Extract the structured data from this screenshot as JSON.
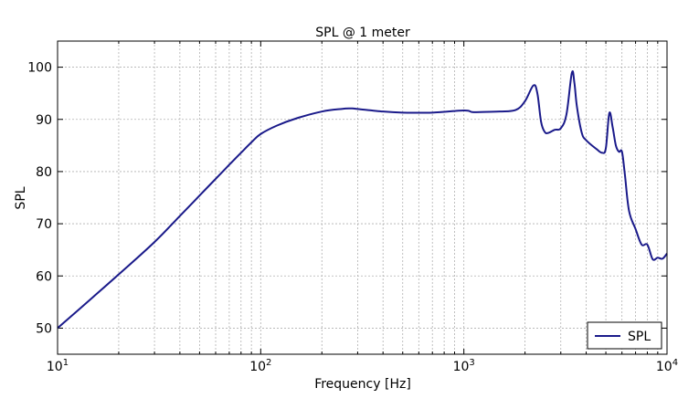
{
  "chart_data": {
    "type": "line",
    "title": "SPL @ 1 meter",
    "xlabel": "Frequency [Hz]",
    "ylabel": "SPL",
    "xscale": "log",
    "xlim": [
      10,
      10000
    ],
    "ylim": [
      45,
      105
    ],
    "grid": true,
    "legend": "bottom-right",
    "x_ticks": [
      {
        "value": 10,
        "base": "10",
        "exp": "1"
      },
      {
        "value": 100,
        "base": "10",
        "exp": "2"
      },
      {
        "value": 1000,
        "base": "10",
        "exp": "3"
      },
      {
        "value": 10000,
        "base": "10",
        "exp": "4"
      }
    ],
    "y_ticks": [
      {
        "value": 50,
        "label": "50"
      },
      {
        "value": 60,
        "label": "60"
      },
      {
        "value": 70,
        "label": "70"
      },
      {
        "value": 80,
        "label": "80"
      },
      {
        "value": 90,
        "label": "90"
      },
      {
        "value": 100,
        "label": "100"
      }
    ],
    "series": [
      {
        "name": "SPL",
        "color": "#1a1a8a",
        "x": [
          10,
          15,
          20,
          30,
          40,
          50,
          60,
          70,
          80,
          90,
          100,
          120,
          150,
          200,
          250,
          280,
          300,
          400,
          500,
          700,
          1000,
          1100,
          1200,
          1500,
          1800,
          2000,
          2200,
          2300,
          2400,
          2500,
          2600,
          2800,
          3000,
          3200,
          3400,
          3500,
          3600,
          3800,
          4000,
          4500,
          4800,
          5000,
          5200,
          5400,
          5600,
          5800,
          6000,
          6200,
          6500,
          7000,
          7500,
          8000,
          8500,
          9000,
          9500,
          10000
        ],
        "y": [
          50,
          56,
          60.3,
          66.5,
          71.5,
          75.4,
          78.6,
          81.3,
          83.6,
          85.6,
          87.2,
          88.8,
          90.2,
          91.5,
          92.0,
          92.1,
          92.0,
          91.5,
          91.3,
          91.3,
          91.7,
          91.4,
          91.4,
          91.5,
          91.8,
          93.5,
          96.5,
          95.0,
          89.5,
          87.6,
          87.4,
          88.0,
          88.3,
          91.0,
          98.9,
          97.0,
          92.5,
          87.5,
          86.0,
          84.3,
          83.6,
          84.5,
          91.2,
          88.5,
          85.0,
          83.8,
          83.8,
          79.5,
          72.5,
          69.0,
          66.0,
          66.0,
          63.2,
          63.5,
          63.3,
          64.3
        ]
      }
    ]
  }
}
